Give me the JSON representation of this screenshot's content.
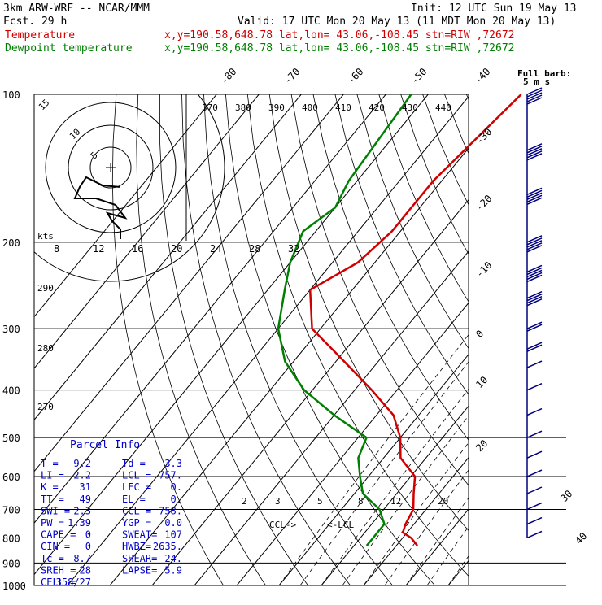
{
  "header": {
    "model": "3km ARW-WRF -- NCAR/MMM",
    "init": "Init: 12 UTC Sun 19 May 13",
    "fcst": "Fcst.    29 h",
    "valid": "Valid: 17 UTC Mon 20 May 13 (11 MDT Mon 20 May 13)"
  },
  "legend": [
    {
      "label": "Temperature",
      "info": "x,y=190.58,648.78   lat,lon= 43.06,-108.45  stn=RIW ,72672",
      "color": "#d00000"
    },
    {
      "label": "Dewpoint temperature",
      "info": "x,y=190.58,648.78   lat,lon= 43.06,-108.45  stn=RIW ,72672",
      "color": "#008000"
    }
  ],
  "barb_label": {
    "line1": "Full barb:",
    "line2": "5 m s"
  },
  "hodograph": {
    "unit_label": "kts",
    "ring_labels": [
      "5",
      "10",
      "15"
    ],
    "speed_ticks": [
      "8",
      "12",
      "16",
      "20",
      "24",
      "28",
      "32"
    ]
  },
  "parcel_info": {
    "title": "Parcel Info",
    "rows": [
      [
        "T  =",
        "9.2",
        "Td =",
        "3.3"
      ],
      [
        "LI =",
        "2.2",
        "LCL =",
        "757."
      ],
      [
        "K  =",
        "31",
        "LFC =",
        "0."
      ],
      [
        "TT =",
        "49",
        "EL  =",
        "0."
      ],
      [
        "SWI =",
        "2.3",
        "CCL =",
        "758."
      ],
      [
        "PW =",
        "1.39",
        "YGP =",
        "0.0"
      ],
      [
        "CAPE =",
        "0",
        "SWEAT=",
        "107"
      ],
      [
        "CIN  =",
        "0",
        "HWBZ=",
        "2635."
      ],
      [
        "Tc  =",
        "8.7",
        "SHEAR=",
        "24."
      ],
      [
        "SREH =",
        "28",
        "LAPSE=",
        "5.9"
      ],
      [
        "CELL =",
        "358/27",
        "",
        ""
      ]
    ]
  },
  "annotations": {
    "ccl": "CCL->",
    "lcl": "<-LCL"
  },
  "colors": {
    "temperature": "#d00000",
    "dewpoint": "#008000",
    "barbs": "#00007f",
    "grid": "#000000"
  },
  "chart_data": {
    "type": "line",
    "title": "",
    "pressure_levels": [
      100,
      200,
      300,
      400,
      500,
      600,
      700,
      800,
      900,
      1000
    ],
    "pressure_labels": [
      "100",
      "200",
      "300",
      "400",
      "500",
      "600",
      "700",
      "800",
      "900",
      "1000"
    ],
    "isotherm_labels_top": [
      "-80",
      "-70",
      "-60",
      "-50",
      "-40"
    ],
    "isotherm_labels_right": [
      "-30",
      "-20",
      "-10",
      "0",
      "10",
      "20",
      "30",
      "40"
    ],
    "theta_labels_top": [
      "370",
      "380",
      "390",
      "400",
      "410",
      "420",
      "430",
      "440"
    ],
    "theta_labels_left": [
      "290",
      "280",
      "270"
    ],
    "mixing_ratio_labels": [
      "2",
      "3",
      "5",
      "8",
      "12",
      "20"
    ],
    "series": [
      {
        "name": "Temperature",
        "p": [
          100,
          150,
          170,
          190,
          220,
          250,
          300,
          350,
          400,
          450,
          500,
          550,
          600,
          650,
          700,
          750,
          780,
          800,
          830
        ],
        "t": [
          -48,
          -52,
          -52,
          -52,
          -54,
          -60,
          -52,
          -38,
          -26,
          -16,
          -10,
          -6,
          1,
          4,
          7,
          8,
          9,
          12,
          15
        ]
      },
      {
        "name": "Dewpoint temperature",
        "p": [
          100,
          150,
          170,
          190,
          220,
          250,
          300,
          350,
          400,
          450,
          500,
          550,
          600,
          650,
          700,
          750,
          780,
          800,
          830
        ],
        "t": [
          -74,
          -72,
          -70,
          -73,
          -70,
          -66,
          -60,
          -52,
          -42,
          -30,
          -18,
          -16,
          -12,
          -8,
          -1,
          3,
          3,
          3,
          3
        ]
      }
    ],
    "winds": {
      "p": [
        100,
        130,
        160,
        200,
        230,
        260,
        300,
        330,
        360,
        400,
        450,
        500,
        550,
        600,
        650,
        700,
        750,
        800
      ],
      "speed_ms": [
        25,
        25,
        25,
        30,
        25,
        20,
        10,
        8,
        6,
        6,
        5,
        5,
        4,
        4,
        3,
        3,
        3,
        3
      ],
      "dir_deg": [
        270,
        270,
        270,
        280,
        280,
        290,
        300,
        300,
        300,
        290,
        290,
        280,
        260,
        250,
        240,
        230,
        220,
        200
      ]
    }
  }
}
